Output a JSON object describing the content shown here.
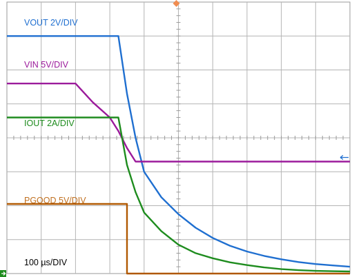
{
  "chart_data": {
    "type": "line",
    "grid": {
      "divisions_x": 10,
      "divisions_y": 8,
      "minor_ticks": true
    },
    "timebase": "100 µs/DIV",
    "x": [
      0.0,
      0.5,
      1.0,
      1.5,
      2.0,
      2.5,
      3.0,
      3.25,
      3.5,
      3.75,
      4.0,
      4.5,
      5.0,
      5.5,
      6.0,
      6.5,
      7.0,
      7.5,
      8.0,
      8.5,
      9.0,
      9.5,
      10.0
    ],
    "series": [
      {
        "name": "VOUT 2V/DIV",
        "color": "#1f6fd0",
        "values": [
          7.0,
          7.0,
          7.0,
          7.0,
          7.0,
          7.0,
          7.0,
          7.0,
          5.3,
          4.0,
          3.0,
          2.25,
          1.75,
          1.35,
          1.05,
          0.82,
          0.65,
          0.52,
          0.42,
          0.34,
          0.28,
          0.24,
          0.2
        ]
      },
      {
        "name": "VIN 5V/DIV",
        "color": "#9b1a9b",
        "values": [
          5.6,
          5.6,
          5.6,
          5.6,
          5.6,
          5.05,
          4.6,
          4.2,
          3.7,
          3.3,
          3.3,
          3.3,
          3.3,
          3.3,
          3.3,
          3.3,
          3.3,
          3.3,
          3.3,
          3.3,
          3.3,
          3.3,
          3.3
        ]
      },
      {
        "name": "IOUT 2A/DIV",
        "color": "#1e8c1e",
        "values": [
          4.6,
          4.6,
          4.6,
          4.6,
          4.6,
          4.6,
          4.6,
          4.6,
          3.2,
          2.4,
          1.8,
          1.25,
          0.85,
          0.6,
          0.45,
          0.33,
          0.25,
          0.18,
          0.13,
          0.1,
          0.08,
          0.07,
          0.06
        ]
      },
      {
        "name": "PGOOD 5V/DIV",
        "color": "#b05800",
        "values": [
          2.05,
          2.05,
          2.05,
          2.05,
          2.05,
          2.05,
          2.05,
          2.05,
          0.0,
          0.0,
          0.0,
          0.0,
          0.0,
          0.0,
          0.0,
          0.0,
          0.0,
          0.0,
          0.0,
          0.0,
          0.0,
          0.0,
          0.0
        ]
      }
    ],
    "markers": {
      "trigger_color": "#f08c50",
      "ground_color": "#1e8c1e",
      "level_color": "#1f6fd0"
    }
  }
}
